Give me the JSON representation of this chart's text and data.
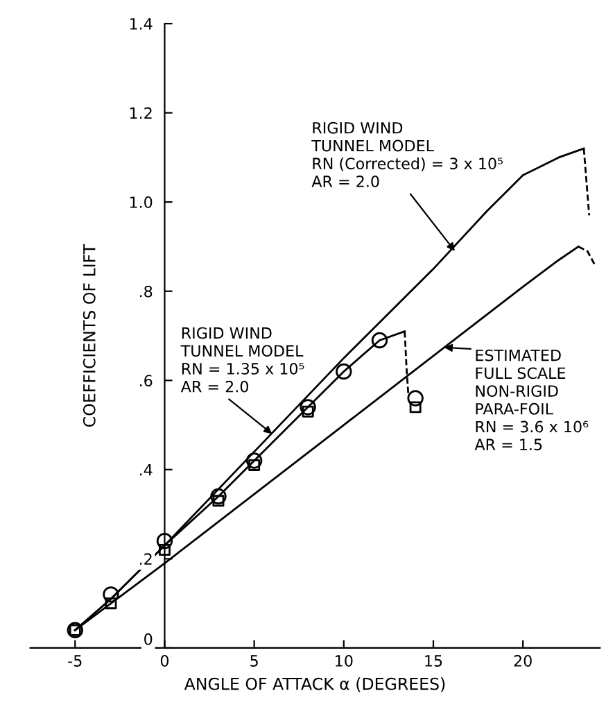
{
  "chart_data": {
    "type": "line",
    "xlabel": "ANGLE OF ATTACK α (DEGREES)",
    "ylabel": "COEFFICIENTS OF LIFT",
    "xlim": [
      -7.5,
      24.3
    ],
    "ylim": [
      0,
      1.4
    ],
    "xticks": [
      -5,
      0,
      5,
      10,
      15,
      20
    ],
    "yticks": [
      0,
      {
        "value": 0.2,
        "label": ".2"
      },
      {
        "value": 0.4,
        "label": ".4"
      },
      {
        "value": 0.6,
        "label": ".6"
      },
      {
        "value": 0.8,
        "label": ".8"
      },
      {
        "value": 1.0,
        "label": "1.0"
      },
      {
        "value": 1.2,
        "label": "1.2"
      },
      {
        "value": 1.4,
        "label": "1.4"
      }
    ],
    "grid": false,
    "legend": false,
    "series": [
      {
        "color": "#000000",
        "marker": "none",
        "line_style": "solid",
        "x": [
          -5,
          -3,
          0,
          5,
          10,
          15,
          18,
          20,
          22,
          23.4
        ],
        "values": [
          0.04,
          0.11,
          0.23,
          0.44,
          0.65,
          0.85,
          0.98,
          1.06,
          1.1,
          1.12
        ]
      },
      {
        "color": "#000000",
        "marker": "none",
        "line_style": "dashed",
        "x": [
          23.4,
          23.7
        ],
        "values": [
          1.12,
          0.97
        ]
      },
      {
        "color": "#000000",
        "marker": "none",
        "line_style": "solid",
        "x": [
          -5,
          -3,
          0,
          3,
          5,
          8,
          10,
          12,
          13.4
        ],
        "values": [
          0.04,
          0.11,
          0.23,
          0.34,
          0.42,
          0.54,
          0.62,
          0.69,
          0.71
        ]
      },
      {
        "color": "#000000",
        "marker": "none",
        "line_style": "dashed",
        "x": [
          13.4,
          13.5,
          13.6
        ],
        "values": [
          0.71,
          0.63,
          0.57
        ]
      },
      {
        "type": "scatter",
        "color": "#000000",
        "marker": "circle",
        "x": [
          -5,
          -3,
          0,
          3,
          5,
          8,
          10,
          12,
          14
        ],
        "values": [
          0.04,
          0.12,
          0.24,
          0.34,
          0.42,
          0.54,
          0.62,
          0.69,
          0.56
        ]
      },
      {
        "type": "scatter",
        "color": "#000000",
        "marker": "square",
        "x": [
          -5,
          -3,
          0,
          3,
          5,
          8,
          14
        ],
        "values": [
          0.04,
          0.1,
          0.22,
          0.33,
          0.41,
          0.53,
          0.54
        ]
      },
      {
        "color": "#000000",
        "marker": "none",
        "line_style": "solid",
        "x": [
          -5,
          0,
          10,
          20,
          22,
          23.1
        ],
        "values": [
          0.04,
          0.19,
          0.5,
          0.81,
          0.87,
          0.9
        ]
      },
      {
        "color": "#000000",
        "marker": "none",
        "line_style": "dashed",
        "x": [
          23.1,
          23.6,
          24
        ],
        "values": [
          0.9,
          0.89,
          0.86
        ]
      }
    ],
    "annotations": [
      {
        "text": "RIGID WIND\nTUNNEL MODEL\nRN (Corrected) = 3 x 10⁵\nAR = 2.0",
        "x": 16.2,
        "y": 0.89
      },
      {
        "text": "RIGID WIND\nTUNNEL MODEL\nRN = 1.35 x 10⁵\nAR = 2.0",
        "x": 6.0,
        "y": 0.48
      },
      {
        "text": "ESTIMATED\nFULL SCALE\nNON-RIGID\nPARA-FOIL\nRN = 3.6 x 10⁶\nAR = 1.5",
        "x": 15.6,
        "y": 0.674
      }
    ]
  }
}
